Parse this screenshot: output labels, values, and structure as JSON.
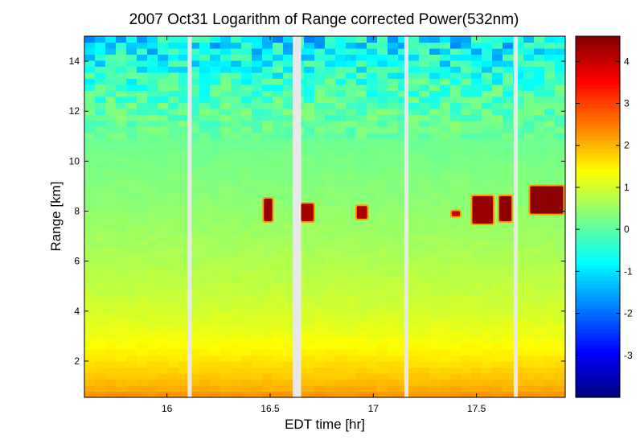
{
  "chart_data": {
    "type": "heatmap",
    "title": "2007 Oct31  Logarithm of Range corrected Power(532nm)",
    "xlabel": "EDT time [hr]",
    "ylabel": "Range [km]",
    "xlim": [
      15.6,
      17.93
    ],
    "ylim": [
      0.55,
      15.0
    ],
    "x_ticks": [
      16,
      16.5,
      17,
      17.5
    ],
    "x_tick_labels": [
      "16",
      "16.5",
      "17",
      "17.5"
    ],
    "y_ticks": [
      2,
      4,
      6,
      8,
      10,
      12,
      14
    ],
    "y_tick_labels": [
      "2",
      "4",
      "6",
      "8",
      "10",
      "12",
      "14"
    ],
    "colorbar": {
      "colormap": "jet",
      "clim": [
        -4.0,
        4.6
      ],
      "ticks": [
        4,
        3,
        2,
        1,
        0,
        -1,
        -2,
        -3
      ],
      "tick_labels": [
        "4",
        "3",
        "2",
        "1",
        "0",
        "-1",
        "-2",
        "-3"
      ]
    },
    "data_gaps_hr": [
      [
        16.1,
        16.12
      ],
      [
        16.61,
        16.65
      ],
      [
        17.15,
        17.17
      ],
      [
        17.68,
        17.7
      ]
    ],
    "value_profile_by_range_km": [
      {
        "range_km": 0.6,
        "value": 2.3
      },
      {
        "range_km": 1.0,
        "value": 2.0
      },
      {
        "range_km": 2.0,
        "value": 1.6
      },
      {
        "range_km": 3.0,
        "value": 1.25
      },
      {
        "range_km": 4.0,
        "value": 1.0
      },
      {
        "range_km": 6.0,
        "value": 0.7
      },
      {
        "range_km": 8.0,
        "value": 0.45
      },
      {
        "range_km": 10.0,
        "value": 0.25
      },
      {
        "range_km": 12.0,
        "value": 0.0
      },
      {
        "range_km": 13.0,
        "value": -0.3
      },
      {
        "range_km": 14.0,
        "value": -0.7
      },
      {
        "range_km": 15.0,
        "value": -1.0
      }
    ],
    "cloud_layers": [
      {
        "t_start": 16.47,
        "t_end": 16.51,
        "z_bottom": 7.6,
        "z_top": 8.5,
        "value": 4.4
      },
      {
        "t_start": 16.65,
        "t_end": 16.71,
        "z_bottom": 7.6,
        "z_top": 8.3,
        "value": 4.3
      },
      {
        "t_start": 16.92,
        "t_end": 16.97,
        "z_bottom": 7.7,
        "z_top": 8.2,
        "value": 4.2
      },
      {
        "t_start": 17.38,
        "t_end": 17.42,
        "z_bottom": 7.8,
        "z_top": 8.0,
        "value": 4.0
      },
      {
        "t_start": 17.48,
        "t_end": 17.58,
        "z_bottom": 7.5,
        "z_top": 8.6,
        "value": 4.4
      },
      {
        "t_start": 17.61,
        "t_end": 17.67,
        "z_bottom": 7.6,
        "z_top": 8.6,
        "value": 4.5
      },
      {
        "t_start": 17.76,
        "t_end": 17.92,
        "z_bottom": 7.9,
        "z_top": 9.0,
        "value": 4.5
      }
    ]
  }
}
